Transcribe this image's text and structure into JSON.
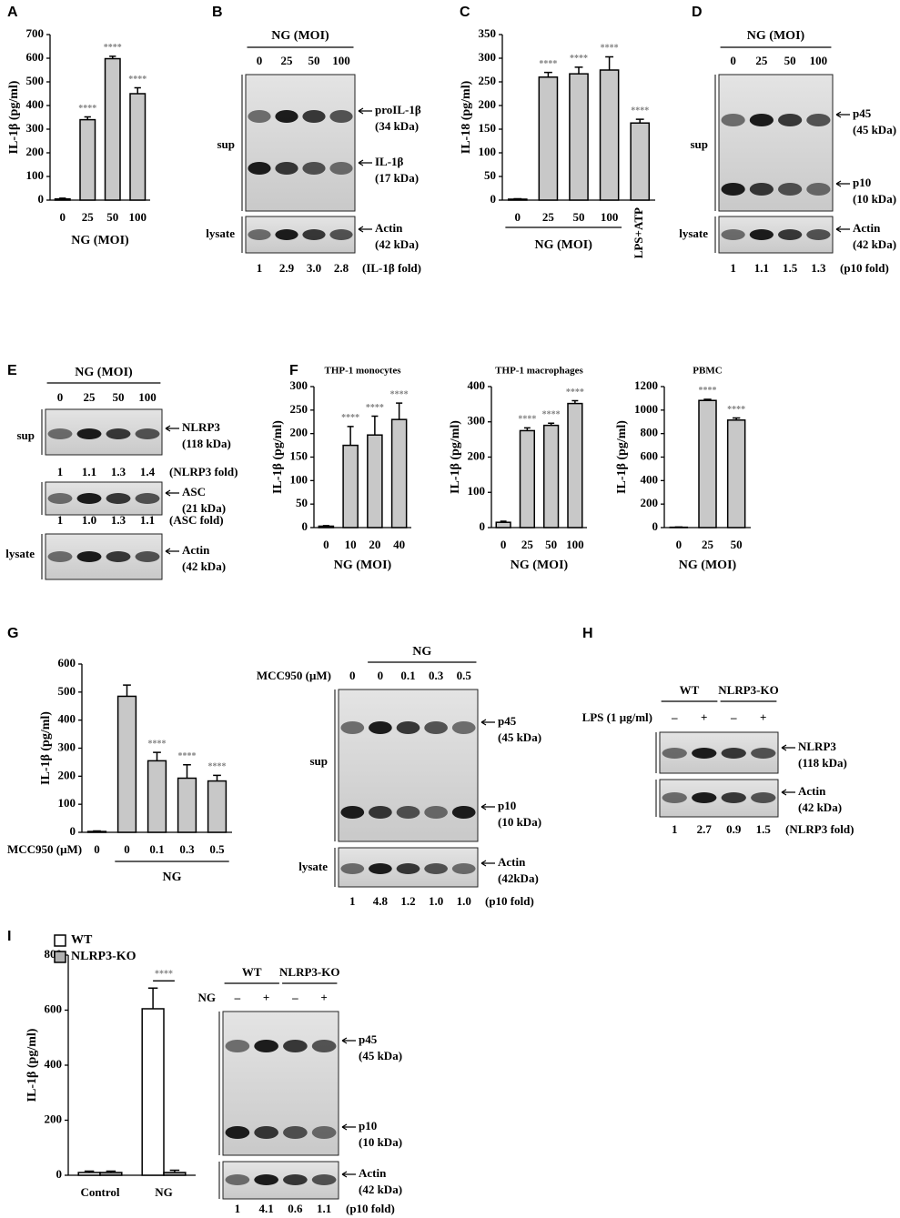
{
  "chart_data": [
    {
      "panel": "A",
      "type": "bar",
      "y_label": "IL-1β (pg/ml)",
      "x_label": "NG (MOI)",
      "categories": [
        "0",
        "25",
        "50",
        "100"
      ],
      "values": [
        5,
        340,
        598,
        450
      ],
      "errors": [
        3,
        12,
        10,
        25
      ],
      "sig": [
        null,
        "****",
        "****",
        "****"
      ],
      "color": "#c8c8c8",
      "ylim": [
        0,
        700
      ],
      "yticks": [
        0,
        100,
        200,
        300,
        400,
        500,
        600,
        700
      ]
    },
    {
      "panel": "C",
      "type": "bar",
      "y_label": "IL-18 (pg/ml)",
      "x_label": "NG (MOI)",
      "categories": [
        "0",
        "25",
        "50",
        "100",
        "LPS+ATP"
      ],
      "values": [
        2,
        260,
        267,
        275,
        163
      ],
      "errors": [
        1,
        10,
        14,
        28,
        8
      ],
      "sig": [
        null,
        "****",
        "****",
        "****",
        "****"
      ],
      "color": "#c8c8c8",
      "ylim": [
        0,
        350
      ],
      "yticks": [
        0,
        50,
        100,
        150,
        200,
        250,
        300,
        350
      ]
    },
    {
      "type": "bar",
      "title": "THP-1 monocytes",
      "y_label": "IL-1β (pg/ml)",
      "x_label": "NG (MOI)",
      "categories": [
        "0",
        "10",
        "20",
        "40"
      ],
      "values": [
        3,
        175,
        197,
        230
      ],
      "errors": [
        1,
        40,
        40,
        35
      ],
      "sig": [
        null,
        "****",
        "****",
        "****"
      ],
      "color": "#c8c8c8",
      "ylim": [
        0,
        300
      ],
      "yticks": [
        0,
        50,
        100,
        150,
        200,
        250,
        300
      ]
    },
    {
      "panel": "F",
      "type": "bar",
      "title": "THP-1 macrophages",
      "y_label": "IL-1β (pg/ml)",
      "x_label": "NG (MOI)",
      "categories": [
        "0",
        "25",
        "50",
        "100"
      ],
      "values": [
        15,
        275,
        290,
        352
      ],
      "errors": [
        3,
        8,
        6,
        8
      ],
      "sig": [
        null,
        "****",
        "****",
        "****"
      ],
      "color": "#c8c8c8",
      "ylim": [
        0,
        400
      ],
      "yticks": [
        0,
        100,
        200,
        300,
        400
      ]
    },
    {
      "type": "bar",
      "title": "PBMC",
      "y_label": "IL-1β (pg/ml)",
      "x_label": "NG (MOI)",
      "categories": [
        "0",
        "25",
        "50"
      ],
      "values": [
        3,
        1082,
        915
      ],
      "errors": [
        2,
        10,
        18
      ],
      "sig": [
        null,
        "****",
        "****"
      ],
      "color": "#c8c8c8",
      "ylim": [
        0,
        1200
      ],
      "yticks": [
        0,
        200,
        400,
        600,
        800,
        1000,
        1200
      ]
    },
    {
      "panel": "G",
      "type": "bar",
      "y_label": "IL-1β (pg/ml)",
      "row_label": "MCC950 (μM)",
      "x_label": "NG",
      "categories": [
        "0",
        "0",
        "0.1",
        "0.3",
        "0.5"
      ],
      "values": [
        3,
        485,
        255,
        193,
        183
      ],
      "errors": [
        2,
        40,
        30,
        48,
        20
      ],
      "sig": [
        null,
        null,
        "****",
        "****",
        "****"
      ],
      "color": "#c8c8c8",
      "ylim": [
        0,
        600
      ],
      "yticks": [
        0,
        100,
        200,
        300,
        400,
        500,
        600
      ]
    },
    {
      "panel": "I",
      "type": "bar",
      "y_label": "IL-1β (pg/ml)",
      "categories": [
        "Control",
        "NG"
      ],
      "series": [
        {
          "name": "WT",
          "color": "#ffffff",
          "values": [
            10,
            605
          ],
          "errors": [
            5,
            75
          ]
        },
        {
          "name": "NLRP3-KO",
          "color": "#b0b0b0",
          "values": [
            10,
            10
          ],
          "errors": [
            5,
            8
          ]
        }
      ],
      "sig": [
        null,
        "****"
      ],
      "ylim": [
        0,
        800
      ],
      "yticks": [
        0,
        200,
        400,
        600,
        800
      ]
    }
  ],
  "blots": [
    {
      "panel": "B",
      "header": "NG (MOI)",
      "lanes": [
        "0",
        "25",
        "50",
        "100"
      ],
      "row_labels": [
        "sup",
        "lysate"
      ],
      "boxes": [
        {
          "bands": [
            {
              "name": "proIL-1β",
              "size": "(34 kDa)"
            },
            {
              "name": "IL-1β",
              "size": "(17 kDa)"
            }
          ]
        },
        {
          "bands": [
            {
              "name": "Actin",
              "size": "(42 kDa)"
            }
          ],
          "fold": [
            "1",
            "2.9",
            "3.0",
            "2.8"
          ],
          "fold_label": "(IL-1β fold)"
        }
      ]
    },
    {
      "panel": "D",
      "header": "NG (MOI)",
      "lanes": [
        "0",
        "25",
        "50",
        "100"
      ],
      "row_labels": [
        "sup",
        "lysate"
      ],
      "boxes": [
        {
          "bands": [
            {
              "name": "p45",
              "size": "(45 kDa)"
            },
            {
              "name": "p10",
              "size": "(10 kDa)"
            }
          ]
        },
        {
          "bands": [
            {
              "name": "Actin",
              "size": "(42 kDa)"
            }
          ],
          "fold": [
            "1",
            "1.1",
            "1.5",
            "1.3"
          ],
          "fold_label": "(p10 fold)"
        }
      ]
    },
    {
      "panel": "E",
      "header": "NG (MOI)",
      "lanes": [
        "0",
        "25",
        "50",
        "100"
      ],
      "row_labels": [
        "sup",
        "lysate"
      ],
      "boxes": [
        {
          "bands": [
            {
              "name": "NLRP3",
              "size": "(118 kDa)"
            }
          ],
          "fold": [
            "1",
            "1.1",
            "1.3",
            "1.4"
          ],
          "fold_label": "(NLRP3 fold)"
        },
        {
          "bands": [
            {
              "name": "ASC",
              "size": "(21 kDa)"
            }
          ],
          "fold": [
            "1",
            "1.0",
            "1.3",
            "1.1"
          ],
          "fold_label": "(ASC fold)"
        },
        {
          "bands": [
            {
              "name": "Actin",
              "size": "(42 kDa)"
            }
          ]
        }
      ]
    },
    {
      "header": "NG",
      "treatment": "MCC950 (μM)",
      "lanes": [
        "0",
        "0",
        "0.1",
        "0.3",
        "0.5"
      ],
      "row_labels": [
        "sup",
        "lysate"
      ],
      "boxes": [
        {
          "bands": [
            {
              "name": "p45",
              "size": "(45 kDa)"
            },
            {
              "name": "p10",
              "size": "(10 kDa)"
            }
          ]
        },
        {
          "bands": [
            {
              "name": "Actin",
              "size": "(42kDa)"
            }
          ],
          "fold": [
            "1",
            "4.8",
            "1.2",
            "1.0",
            "1.0"
          ],
          "fold_label": "(p10 fold)"
        }
      ]
    },
    {
      "panel": "H",
      "groups": [
        "WT",
        "NLRP3-KO"
      ],
      "treatment": "LPS (1 μg/ml)",
      "lanes": [
        "–",
        "+",
        "–",
        "+"
      ],
      "boxes": [
        {
          "bands": [
            {
              "name": "NLRP3",
              "size": "(118 kDa)"
            }
          ]
        },
        {
          "bands": [
            {
              "name": "Actin",
              "size": "(42 kDa)"
            }
          ],
          "fold": [
            "1",
            "2.7",
            "0.9",
            "1.5"
          ],
          "fold_label": "(NLRP3 fold)"
        }
      ]
    },
    {
      "groups": [
        "WT",
        "NLRP3-KO"
      ],
      "treatment": "NG",
      "lanes": [
        "–",
        "+",
        "–",
        "+"
      ],
      "boxes": [
        {
          "bands": [
            {
              "name": "p45",
              "size": "(45 kDa)"
            },
            {
              "name": "p10",
              "size": "(10 kDa)"
            }
          ]
        },
        {
          "bands": [
            {
              "name": "Actin",
              "size": "(42 kDa)"
            }
          ],
          "fold": [
            "1",
            "4.1",
            "0.6",
            "1.1"
          ],
          "fold_label": "(p10 fold)"
        }
      ]
    }
  ]
}
